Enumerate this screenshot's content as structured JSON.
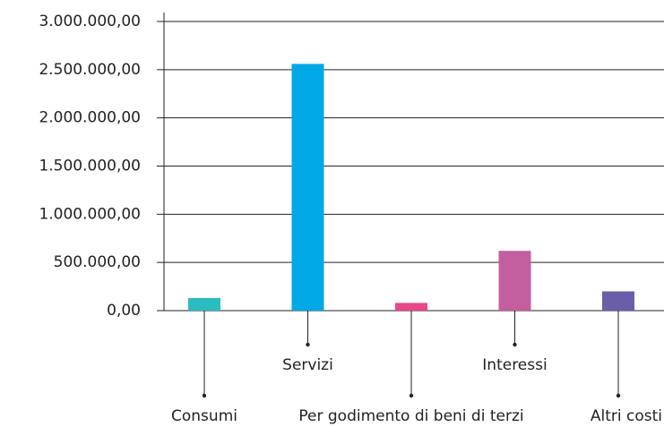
{
  "chart_data": {
    "type": "bar",
    "categories": [
      "Consumi",
      "Servizi",
      "Per godimento di beni di terzi",
      "Interessi",
      "Altri costi"
    ],
    "values": [
      130000,
      2560000,
      80000,
      620000,
      200000
    ],
    "colors": [
      "#2bbcbf",
      "#00a9e6",
      "#e8478a",
      "#c35e9f",
      "#6b5ea8"
    ],
    "ylim": [
      0,
      3000000
    ],
    "yticks": [
      {
        "value": 0,
        "label": "0,00"
      },
      {
        "value": 500000,
        "label": "500.000,00"
      },
      {
        "value": 1000000,
        "label": "1.000.000,00"
      },
      {
        "value": 1500000,
        "label": "1.500.000,00"
      },
      {
        "value": 2000000,
        "label": "2.000.000,00"
      },
      {
        "value": 2500000,
        "label": "2.500.000,00"
      },
      {
        "value": 3000000,
        "label": "3.000.000,00"
      }
    ],
    "grid": true
  }
}
